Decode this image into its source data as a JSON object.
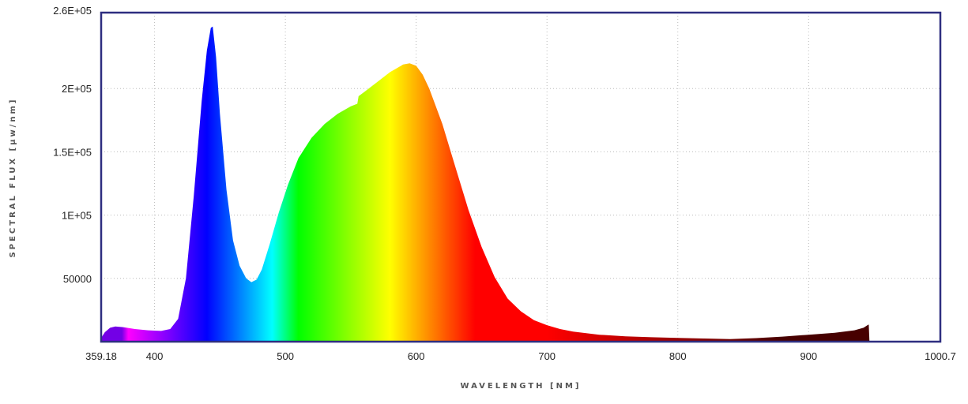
{
  "chart_data": {
    "type": "area",
    "xlabel": "WAVELENGTH [NM]",
    "ylabel": "SPECTRAL FLUX [μw/nm]",
    "xlim": [
      359.18,
      1000.7
    ],
    "ylim": [
      0,
      260000
    ],
    "x_tick_labels": [
      "359.18",
      "400",
      "500",
      "600",
      "700",
      "800",
      "900",
      "1000.7"
    ],
    "x_tick_values": [
      359.18,
      400,
      500,
      600,
      700,
      800,
      900,
      1000.7
    ],
    "y_tick_labels": [
      "2.6E+05",
      "2E+05",
      "1.5E+05",
      "1E+05",
      "50000"
    ],
    "y_tick_values": [
      260000,
      200000,
      150000,
      100000,
      50000
    ],
    "grid": true,
    "fill": "visible-spectrum gradient by wavelength",
    "series": [
      {
        "x": [
          359.18,
          362,
          366,
          370,
          376,
          385,
          395,
          405,
          412,
          418,
          424,
          430,
          436,
          440,
          443,
          444.5,
          447,
          450,
          455,
          460,
          465,
          470,
          474,
          478,
          482,
          488,
          495,
          502,
          510,
          520,
          530,
          540,
          550,
          555,
          556,
          560,
          570,
          580,
          590,
          595,
          600,
          605,
          610,
          620,
          630,
          640,
          650,
          660,
          670,
          680,
          690,
          700,
          710,
          720,
          740,
          760,
          780,
          800,
          820,
          840,
          860,
          880,
          900,
          920,
          935,
          942,
          945,
          946,
          946.5
        ],
        "y": [
          3000,
          7500,
          11000,
          12000,
          11500,
          10000,
          9000,
          8500,
          10000,
          18000,
          50000,
          115000,
          190000,
          230000,
          248000,
          249000,
          225000,
          180000,
          120000,
          80000,
          60000,
          50000,
          47000,
          49000,
          57000,
          77000,
          102000,
          124000,
          145000,
          161000,
          172000,
          180000,
          186000,
          188000,
          194000,
          197000,
          205000,
          213000,
          219000,
          220000,
          218000,
          211000,
          200000,
          172000,
          138000,
          104000,
          75000,
          51000,
          34000,
          24000,
          17000,
          13000,
          10000,
          8000,
          5500,
          4200,
          3500,
          3000,
          2500,
          2000,
          2800,
          4000,
          5500,
          7000,
          9000,
          11000,
          13000,
          13500,
          0
        ]
      }
    ]
  }
}
